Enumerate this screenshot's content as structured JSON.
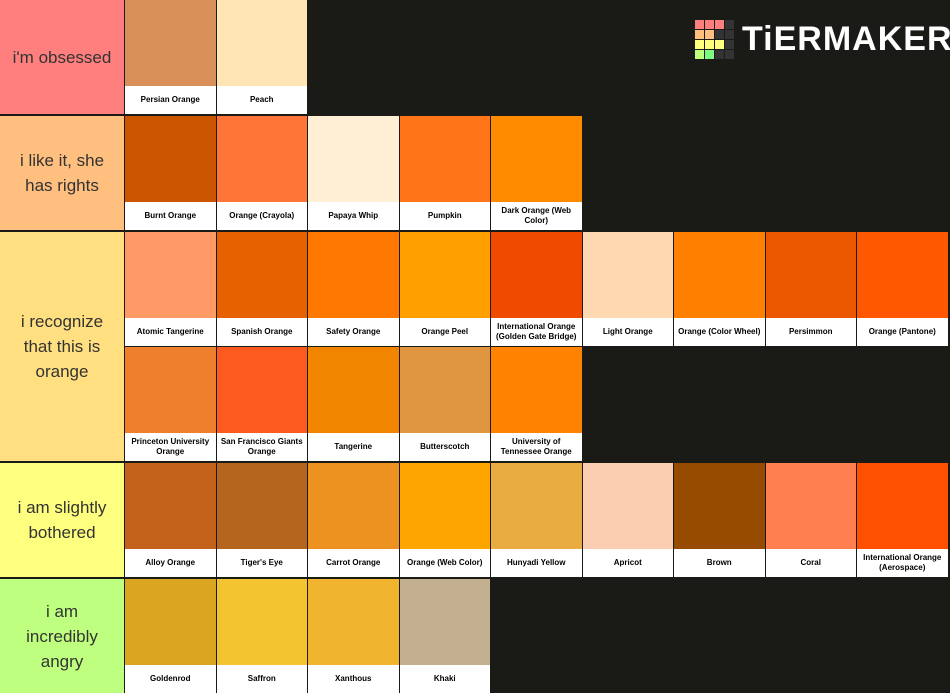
{
  "logo": "TiERMAKER",
  "tiers": [
    {
      "label": "i'm obsessed",
      "color": "#ff7f7f",
      "items": [
        {
          "name": "Persian Orange",
          "color": "#d99058"
        },
        {
          "name": "Peach",
          "color": "#ffe5b4"
        }
      ]
    },
    {
      "label": "i like it, she has rights",
      "color": "#ffbf7f",
      "items": [
        {
          "name": "Burnt Orange",
          "color": "#cc5500"
        },
        {
          "name": "Orange (Crayola)",
          "color": "#ff7538"
        },
        {
          "name": "Papaya Whip",
          "color": "#ffefd5"
        },
        {
          "name": "Pumpkin",
          "color": "#ff7518"
        },
        {
          "name": "Dark Orange (Web Color)",
          "color": "#ff8c00"
        }
      ]
    },
    {
      "label": "i recognize that this is orange",
      "color": "#ffdf7f",
      "items": [
        {
          "name": "Atomic Tangerine",
          "color": "#ff9966"
        },
        {
          "name": "Spanish Orange",
          "color": "#e86100"
        },
        {
          "name": "Safety Orange",
          "color": "#ff7800"
        },
        {
          "name": "Orange Peel",
          "color": "#ff9f00"
        },
        {
          "name": "International Orange (Golden Gate Bridge)",
          "color": "#f04a00"
        },
        {
          "name": "Light Orange",
          "color": "#fed8b1"
        },
        {
          "name": "Orange (Color Wheel)",
          "color": "#ff7f00"
        },
        {
          "name": "Persimmon",
          "color": "#ec5800"
        },
        {
          "name": "Orange (Pantone)",
          "color": "#ff5800"
        },
        {
          "name": "Princeton University Orange",
          "color": "#ee7f2d"
        },
        {
          "name": "San Francisco Giants Orange",
          "color": "#fd5a1e"
        },
        {
          "name": "Tangerine",
          "color": "#f28500"
        },
        {
          "name": "Butterscotch",
          "color": "#e09540"
        },
        {
          "name": "University of Tennessee Orange",
          "color": "#ff8200"
        }
      ]
    },
    {
      "label": "i am slightly bothered",
      "color": "#ffff7f",
      "items": [
        {
          "name": "Alloy Orange",
          "color": "#c4621b"
        },
        {
          "name": "Tiger's Eye",
          "color": "#b5651d"
        },
        {
          "name": "Carrot Orange",
          "color": "#ed9121"
        },
        {
          "name": "Orange (Web Color)",
          "color": "#ffa500"
        },
        {
          "name": "Hunyadi Yellow",
          "color": "#e8ac41"
        },
        {
          "name": "Apricot",
          "color": "#fbceb1"
        },
        {
          "name": "Brown",
          "color": "#964b00"
        },
        {
          "name": "Coral",
          "color": "#ff7f50"
        },
        {
          "name": "International Orange (Aerospace)",
          "color": "#ff4f00"
        }
      ]
    },
    {
      "label": "i am incredibly angry",
      "color": "#bfff7f",
      "items": [
        {
          "name": "Goldenrod",
          "color": "#daa520"
        },
        {
          "name": "Saffron",
          "color": "#f4c430"
        },
        {
          "name": "Xanthous",
          "color": "#f1b42f"
        },
        {
          "name": "Khaki",
          "color": "#c3b091"
        }
      ]
    }
  ]
}
